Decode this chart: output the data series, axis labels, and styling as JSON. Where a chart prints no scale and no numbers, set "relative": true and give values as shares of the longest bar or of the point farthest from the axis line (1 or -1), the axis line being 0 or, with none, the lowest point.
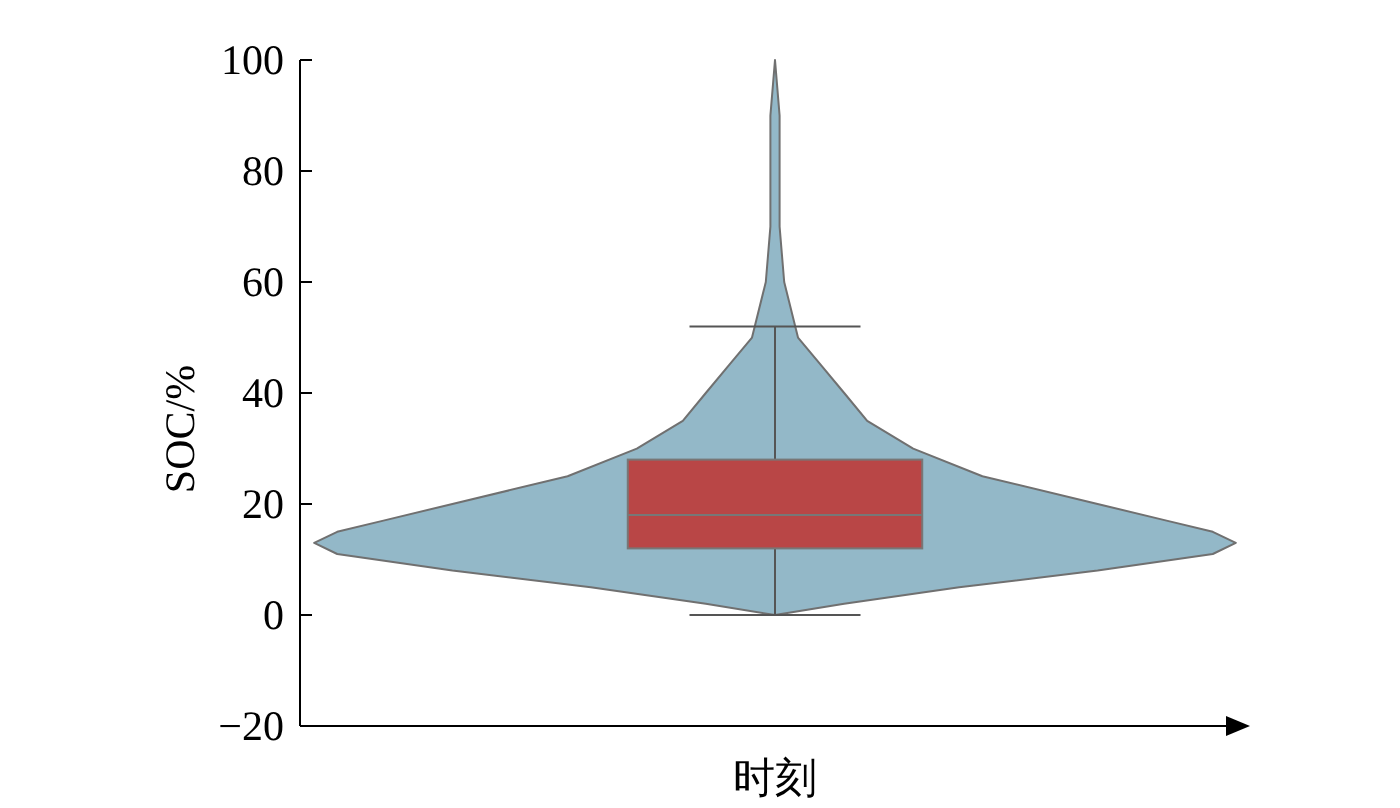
{
  "chart_data": [
    {
      "type": "box",
      "xlabel": "时刻",
      "ylabel": "SOC/%",
      "categories": [
        null
      ],
      "boxes": [
        {
          "low": 0,
          "q1": 12,
          "median": 18,
          "q3": 28,
          "high": 52
        }
      ],
      "colors": [
        "#b94646"
      ],
      "ylim": [
        -20,
        100
      ],
      "yticks": [
        {
          "value": -20,
          "label": "−20"
        },
        0,
        20,
        40,
        60,
        80,
        100
      ]
    },
    {
      "type": "area",
      "relative": true,
      "orientation": "horizontal",
      "color": "#93b8c8",
      "x": [
        0,
        2,
        5,
        8,
        11,
        13,
        15,
        17,
        20,
        25,
        30,
        35,
        40,
        45,
        50,
        60,
        70,
        80,
        90,
        100
      ],
      "values": [
        0,
        0.15,
        0.4,
        0.7,
        0.95,
        1,
        0.95,
        0.85,
        0.7,
        0.45,
        0.3,
        0.2,
        0.15,
        0.1,
        0.05,
        0.02,
        0.01,
        0.01,
        0.01,
        0
      ],
      "ylim": [
        -20,
        100
      ]
    }
  ]
}
